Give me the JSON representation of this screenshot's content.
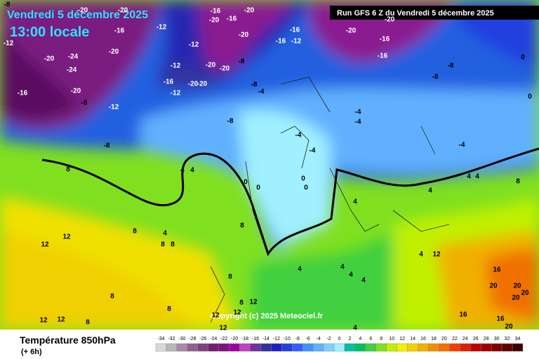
{
  "header": {
    "date": "Vendredi 5 décembre 2025",
    "time": "13:00 locale",
    "run": "Run GFS 6 Z du Vendredi 5 décembre 2025"
  },
  "copyright": "Copyright (c) 2025 Meteociel.fr",
  "footer": {
    "title": "Température 850hPa",
    "step": "(+ 6h)"
  },
  "legend": {
    "items": [
      {
        "label": -34,
        "color": "#d8d8d8"
      },
      {
        "label": -32,
        "color": "#b8b8b8"
      },
      {
        "label": -30,
        "color": "#a888a8"
      },
      {
        "label": -28,
        "color": "#906090"
      },
      {
        "label": -26,
        "color": "#804080"
      },
      {
        "label": -24,
        "color": "#702070"
      },
      {
        "label": -22,
        "color": "#801080"
      },
      {
        "label": -20,
        "color": "#a000a0"
      },
      {
        "label": -18,
        "color": "#c040c0"
      },
      {
        "label": -16,
        "color": "#7030a0"
      },
      {
        "label": -14,
        "color": "#3030a0"
      },
      {
        "label": -12,
        "color": "#2020c0"
      },
      {
        "label": -10,
        "color": "#2040e0"
      },
      {
        "label": -8,
        "color": "#3060ff"
      },
      {
        "label": -6,
        "color": "#4090ff"
      },
      {
        "label": -4,
        "color": "#60b0ff"
      },
      {
        "label": -2,
        "color": "#80d0ff"
      },
      {
        "label": 0,
        "color": "#a0f0ff"
      },
      {
        "label": 2,
        "color": "#00c0a0"
      },
      {
        "label": 4,
        "color": "#00c060"
      },
      {
        "label": 6,
        "color": "#40d040"
      },
      {
        "label": 8,
        "color": "#80e020"
      },
      {
        "label": 10,
        "color": "#c0f000"
      },
      {
        "label": 12,
        "color": "#f0f000"
      },
      {
        "label": 14,
        "color": "#f0d000"
      },
      {
        "label": 16,
        "color": "#f0b000"
      },
      {
        "label": 18,
        "color": "#f09000"
      },
      {
        "label": 20,
        "color": "#f07000"
      },
      {
        "label": 22,
        "color": "#f04000"
      },
      {
        "label": 24,
        "color": "#e02000"
      },
      {
        "label": 26,
        "color": "#c00000"
      },
      {
        "label": 28,
        "color": "#a00000"
      },
      {
        "label": 30,
        "color": "#800000"
      },
      {
        "label": 32,
        "color": "#600000"
      },
      {
        "label": 34,
        "color": "#400000"
      }
    ]
  },
  "map_labels": [
    -8,
    -20,
    -20,
    -16,
    -16,
    -20,
    -20,
    -12,
    -16,
    -12,
    -20,
    -20,
    -24,
    -24,
    -12,
    -20,
    -16,
    -16,
    -12,
    -20,
    -20,
    -16,
    -16,
    -12,
    -20,
    -20,
    -8,
    -16,
    -20,
    -20,
    -12,
    -8,
    -4,
    -8,
    -8,
    0,
    0,
    -16,
    -20,
    -8,
    -12,
    -8,
    -8,
    -4,
    -4,
    -4,
    -4,
    -4,
    8,
    4,
    4,
    0,
    0,
    0,
    0,
    4,
    4,
    8,
    4,
    8,
    4,
    8,
    8,
    12,
    12,
    8,
    4,
    12,
    4,
    4,
    4,
    4,
    4,
    16,
    20,
    20,
    20,
    20,
    16,
    16,
    20,
    8,
    8,
    12,
    8,
    12,
    4,
    8,
    12,
    12,
    12,
    12,
    8
  ]
}
